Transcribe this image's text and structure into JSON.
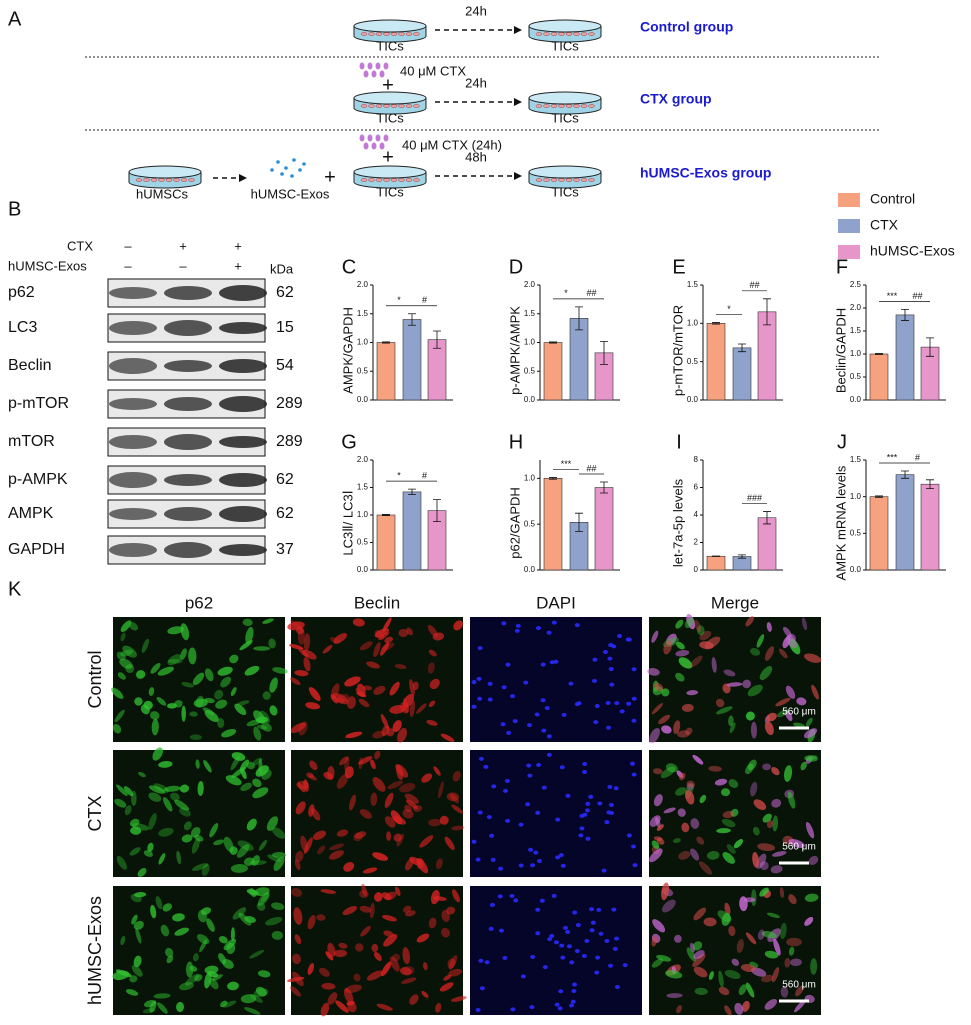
{
  "panel_a": {
    "label": "A",
    "plus": "+",
    "control": {
      "time": "24h",
      "left": "TICs",
      "right": "TICs",
      "group": "Control group"
    },
    "ctx": {
      "treatment": "40 μM CTX",
      "time": "24h",
      "left": "TICs",
      "right": "TICs",
      "group": "CTX group"
    },
    "exos": {
      "source": "hUMSCs",
      "exos": "hUMSC-Exos",
      "treatment": "40 μM CTX (24h)",
      "time": "48h",
      "left": "TICs",
      "right": "TICs",
      "group": "hUMSC-Exos group"
    }
  },
  "panel_b": {
    "label": "B",
    "unit": "kDa",
    "conditions": [
      {
        "name": "CTX",
        "signs": [
          "–",
          "+",
          "+"
        ]
      },
      {
        "name": "hUMSC-Exos",
        "signs": [
          "–",
          "–",
          "+"
        ]
      }
    ],
    "proteins": [
      {
        "name": "p62",
        "kda": "62"
      },
      {
        "name": "LC3",
        "kda": "15"
      },
      {
        "name": "Beclin",
        "kda": "54"
      },
      {
        "name": "p-mTOR",
        "kda": "289"
      },
      {
        "name": "mTOR",
        "kda": "289"
      },
      {
        "name": "p-AMPK",
        "kda": "62"
      },
      {
        "name": "AMPK",
        "kda": "62"
      },
      {
        "name": "GAPDH",
        "kda": "37"
      }
    ]
  },
  "legend": [
    {
      "name": "Control",
      "color": "#f6a27e"
    },
    {
      "name": "CTX",
      "color": "#8fa2cb"
    },
    {
      "name": "hUMSC-Exos",
      "color": "#e696c9"
    }
  ],
  "chart_data": [
    {
      "type": "bar",
      "label": "C",
      "y_label": "AMPK/GAPDH",
      "values": [
        1.0,
        1.4,
        1.05
      ],
      "errors": [
        0.01,
        0.1,
        0.15
      ],
      "ylim": [
        0,
        2
      ],
      "yticks": [
        {
          "value": 0,
          "label": "0.0"
        },
        0.5,
        {
          "value": 1,
          "label": "1.0"
        },
        1.5,
        {
          "value": 2,
          "label": "2.0"
        }
      ],
      "significance": {
        "vs_control": "*",
        "vs_ctx": "#"
      }
    },
    {
      "type": "bar",
      "label": "D",
      "y_label": "p-AMPK/AMPK",
      "values": [
        1.0,
        1.42,
        0.82
      ],
      "errors": [
        0.01,
        0.2,
        0.2
      ],
      "ylim": [
        0,
        2
      ],
      "yticks": [
        {
          "value": 0,
          "label": "0.0"
        },
        0.5,
        {
          "value": 1,
          "label": "1.0"
        },
        1.5,
        {
          "value": 2,
          "label": "2.0"
        }
      ],
      "significance": {
        "vs_control": "*",
        "vs_ctx": "##"
      }
    },
    {
      "type": "bar",
      "label": "E",
      "y_label": "p-mTOR/mTOR",
      "values": [
        1.0,
        0.68,
        1.15
      ],
      "errors": [
        0.01,
        0.05,
        0.17
      ],
      "ylim": [
        0,
        1.5
      ],
      "yticks": [
        {
          "value": 0,
          "label": "0.0"
        },
        0.5,
        {
          "value": 1,
          "label": "1.0"
        },
        1.5
      ],
      "significance": {
        "vs_control": "*",
        "vs_ctx": "##"
      }
    },
    {
      "type": "bar",
      "label": "F",
      "y_label": "Beclin/GAPDH",
      "values": [
        1.0,
        1.85,
        1.15
      ],
      "errors": [
        0.01,
        0.12,
        0.2
      ],
      "ylim": [
        0,
        2.5
      ],
      "yticks": [
        {
          "value": 0,
          "label": "0.0"
        },
        0.5,
        {
          "value": 1,
          "label": "1.0"
        },
        1.5,
        {
          "value": 2,
          "label": "2.0"
        },
        2.5
      ],
      "significance": {
        "vs_control": "***",
        "vs_ctx": "##"
      }
    },
    {
      "type": "bar",
      "label": "G",
      "y_label": "LC3Ⅱ/ LC3Ⅰ",
      "values": [
        1.0,
        1.42,
        1.08
      ],
      "errors": [
        0.01,
        0.05,
        0.2
      ],
      "ylim": [
        0,
        2
      ],
      "yticks": [
        {
          "value": 0,
          "label": "0.0"
        },
        0.5,
        {
          "value": 1,
          "label": "1.0"
        },
        1.5,
        {
          "value": 2,
          "label": "2.0"
        }
      ],
      "significance": {
        "vs_control": "*",
        "vs_ctx": "#"
      }
    },
    {
      "type": "bar",
      "label": "H",
      "y_label": "p62/GAPDH",
      "values": [
        1.0,
        0.52,
        0.9
      ],
      "errors": [
        0.01,
        0.1,
        0.06
      ],
      "ylim": [
        0,
        1.2
      ],
      "yticks": [
        {
          "value": 0,
          "label": "0.0"
        },
        0.5,
        {
          "value": 1,
          "label": "1.0"
        }
      ],
      "significance": {
        "vs_control": "***",
        "vs_ctx": "##"
      }
    },
    {
      "type": "bar",
      "label": "I",
      "y_label": "let-7a-5p levels",
      "values": [
        1.0,
        0.98,
        3.8
      ],
      "errors": [
        0.02,
        0.12,
        0.45
      ],
      "ylim": [
        0,
        8
      ],
      "yticks": [
        0,
        2,
        4,
        6,
        8
      ],
      "significance": {
        "vs_ctx": "###"
      }
    },
    {
      "type": "bar",
      "label": "J",
      "y_label": "AMPK mRNA levels",
      "values": [
        1.0,
        1.3,
        1.17
      ],
      "errors": [
        0.01,
        0.05,
        0.06
      ],
      "ylim": [
        0,
        1.5
      ],
      "yticks": [
        {
          "value": 0,
          "label": "0.0"
        },
        0.5,
        {
          "value": 1,
          "label": "1.0"
        },
        1.5
      ],
      "significance": {
        "vs_control": "***",
        "vs_ctx": "#"
      }
    }
  ],
  "panel_k": {
    "label": "K",
    "columns": [
      "p62",
      "Beclin",
      "DAPI",
      "Merge"
    ],
    "rows": [
      "Control",
      "CTX",
      "hUMSC-Exos"
    ],
    "scale_bar": "560 μm"
  }
}
